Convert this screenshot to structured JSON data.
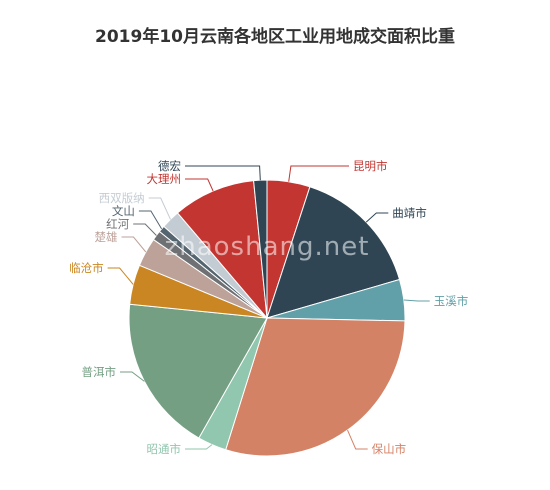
{
  "chart_data": {
    "type": "pie",
    "title": "2019年10月云南各地区工业用地成交面积比重",
    "watermark": "zhaoshang.net",
    "slices": [
      {
        "label": "昆明市",
        "value": 5.2,
        "color": "#c23531"
      },
      {
        "label": "曲靖市",
        "value": 16.0,
        "color": "#2f4554"
      },
      {
        "label": "玉溪市",
        "value": 5.0,
        "color": "#61a0a8"
      },
      {
        "label": "保山市",
        "value": 30.5,
        "color": "#d48265"
      },
      {
        "label": "昭通市",
        "value": 3.5,
        "color": "#91c7ae"
      },
      {
        "label": "普洱市",
        "value": 19.0,
        "color": "#749f83"
      },
      {
        "label": "临沧市",
        "value": 4.8,
        "color": "#ca8622"
      },
      {
        "label": "楚雄",
        "value": 3.5,
        "color": "#bda29a"
      },
      {
        "label": "红河",
        "value": 1.2,
        "color": "#6e7074"
      },
      {
        "label": "文山",
        "value": 0.8,
        "color": "#546570"
      },
      {
        "label": "西双版纳",
        "value": 2.3,
        "color": "#c4ccd3"
      },
      {
        "label": "大理州",
        "value": 10.0,
        "color": "#c23531"
      },
      {
        "label": "德宏",
        "value": 1.6,
        "color": "#2f4554"
      }
    ]
  }
}
